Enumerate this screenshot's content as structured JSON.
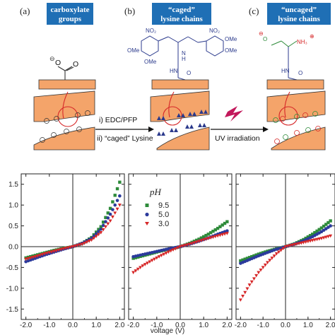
{
  "schematic": {
    "panels": [
      {
        "letter": "(a)",
        "title": [
          "carboxylate",
          "groups"
        ]
      },
      {
        "letter": "(b)",
        "title": [
          "“caged”",
          "lysine chains"
        ]
      },
      {
        "letter": "(c)",
        "title": [
          "“uncaged”",
          "lysine chains"
        ]
      }
    ],
    "step1_labels": [
      "i) EDC/PFP",
      "ii) “caged” Lysine"
    ],
    "step2_label": "UV irradiation",
    "chem_labels": {
      "no2": "NO₂",
      "ome": "OMe",
      "nh": "HN",
      "nh_chain": "N",
      "h": "H",
      "o": "O",
      "nh3": "NH₃",
      "minus": "⊖",
      "plus": "⊕"
    },
    "colors": {
      "title_box": "#1f6fb5",
      "substrate": "#f4a46a",
      "molecule": "#2b3a8c",
      "uncaged": "#2e8b3a",
      "charge_pos": "#d62728",
      "charge_neg": "#333333"
    }
  },
  "chart_data": [
    {
      "type": "scatter",
      "panel": "a",
      "xlabel": "",
      "ylabel": "",
      "xlim": [
        -2.2,
        2.2
      ],
      "ylim": [
        -1.75,
        1.75
      ],
      "xticks": [
        "-2.0",
        "-1.0",
        "0.0",
        "1.0",
        "2.0"
      ],
      "yticks": [
        "1.5",
        "1.0",
        "0.5",
        "0.0",
        "-0.5",
        "-1.0",
        "-1.5"
      ],
      "series": [
        {
          "name": "9.5",
          "color": "#2e8b3a",
          "marker": "square",
          "x": [
            -2.0,
            -1.6,
            -1.2,
            -0.8,
            -0.4,
            0.0,
            0.4,
            0.8,
            1.2,
            1.6,
            2.0
          ],
          "y": [
            -0.27,
            -0.21,
            -0.15,
            -0.09,
            -0.04,
            0.0,
            0.08,
            0.22,
            0.48,
            0.92,
            1.55
          ]
        },
        {
          "name": "5.0",
          "color": "#2b3a9c",
          "marker": "circle",
          "x": [
            -2.0,
            -1.6,
            -1.2,
            -0.8,
            -0.4,
            0.0,
            0.4,
            0.8,
            1.2,
            1.6,
            2.0
          ],
          "y": [
            -0.36,
            -0.28,
            -0.2,
            -0.13,
            -0.06,
            0.0,
            0.08,
            0.2,
            0.42,
            0.78,
            1.22
          ]
        },
        {
          "name": "3.0",
          "color": "#d62728",
          "marker": "triangle",
          "x": [
            -2.0,
            -1.6,
            -1.2,
            -0.8,
            -0.4,
            0.0,
            0.4,
            0.8,
            1.2,
            1.6,
            2.0
          ],
          "y": [
            -0.3,
            -0.24,
            -0.17,
            -0.11,
            -0.05,
            0.0,
            0.06,
            0.16,
            0.34,
            0.62,
            1.0
          ]
        }
      ]
    },
    {
      "type": "scatter",
      "panel": "b",
      "xlabel": "voltage (V)",
      "ylabel": "",
      "xlim": [
        -2.2,
        2.2
      ],
      "ylim": [
        -1.75,
        1.75
      ],
      "xticks": [
        "-2.0",
        "-1.0",
        "0.0",
        "1.0",
        "2.0"
      ],
      "legend": {
        "title": "pH",
        "position": "top-left"
      },
      "series": [
        {
          "name": "9.5",
          "color": "#2e8b3a",
          "marker": "square",
          "x": [
            -2.0,
            -1.6,
            -1.2,
            -0.8,
            -0.4,
            0.0,
            0.4,
            0.8,
            1.2,
            1.6,
            2.0
          ],
          "y": [
            -0.28,
            -0.22,
            -0.16,
            -0.1,
            -0.05,
            0.0,
            0.08,
            0.18,
            0.3,
            0.44,
            0.6
          ]
        },
        {
          "name": "5.0",
          "color": "#2b3a9c",
          "marker": "circle",
          "x": [
            -2.0,
            -1.6,
            -1.2,
            -0.8,
            -0.4,
            0.0,
            0.4,
            0.8,
            1.2,
            1.6,
            2.0
          ],
          "y": [
            -0.24,
            -0.19,
            -0.14,
            -0.09,
            -0.04,
            0.0,
            0.06,
            0.13,
            0.21,
            0.3,
            0.38
          ]
        },
        {
          "name": "3.0",
          "color": "#d62728",
          "marker": "triangle",
          "x": [
            -2.0,
            -1.6,
            -1.2,
            -0.8,
            -0.4,
            0.0,
            0.4,
            0.8,
            1.2,
            1.6,
            2.0
          ],
          "y": [
            -0.62,
            -0.46,
            -0.33,
            -0.21,
            -0.1,
            0.0,
            0.06,
            0.13,
            0.2,
            0.26,
            0.32
          ]
        }
      ]
    },
    {
      "type": "scatter",
      "panel": "c",
      "xlabel": "",
      "ylabel": "",
      "xlim": [
        -2.2,
        2.2
      ],
      "ylim": [
        -1.75,
        1.75
      ],
      "xticks": [
        "-2.0",
        "-1.0",
        "0.0",
        "1.0",
        "2.0"
      ],
      "series": [
        {
          "name": "9.5",
          "color": "#2e8b3a",
          "marker": "square",
          "x": [
            -2.0,
            -1.6,
            -1.2,
            -0.8,
            -0.4,
            0.0,
            0.4,
            0.8,
            1.2,
            1.6,
            2.0
          ],
          "y": [
            -0.34,
            -0.26,
            -0.18,
            -0.11,
            -0.05,
            0.0,
            0.07,
            0.17,
            0.3,
            0.45,
            0.62
          ]
        },
        {
          "name": "5.0",
          "color": "#2b3a9c",
          "marker": "circle",
          "x": [
            -2.0,
            -1.6,
            -1.2,
            -0.8,
            -0.4,
            0.0,
            0.4,
            0.8,
            1.2,
            1.6,
            2.0
          ],
          "y": [
            -0.4,
            -0.31,
            -0.22,
            -0.14,
            -0.06,
            0.0,
            0.06,
            0.14,
            0.24,
            0.36,
            0.5
          ]
        },
        {
          "name": "3.0",
          "color": "#d62728",
          "marker": "triangle",
          "x": [
            -2.0,
            -1.6,
            -1.2,
            -0.8,
            -0.4,
            0.0,
            0.4,
            0.8,
            1.2,
            1.6,
            2.0
          ],
          "y": [
            -1.28,
            -0.92,
            -0.62,
            -0.38,
            -0.17,
            0.0,
            0.05,
            0.1,
            0.15,
            0.2,
            0.26
          ]
        }
      ]
    }
  ]
}
